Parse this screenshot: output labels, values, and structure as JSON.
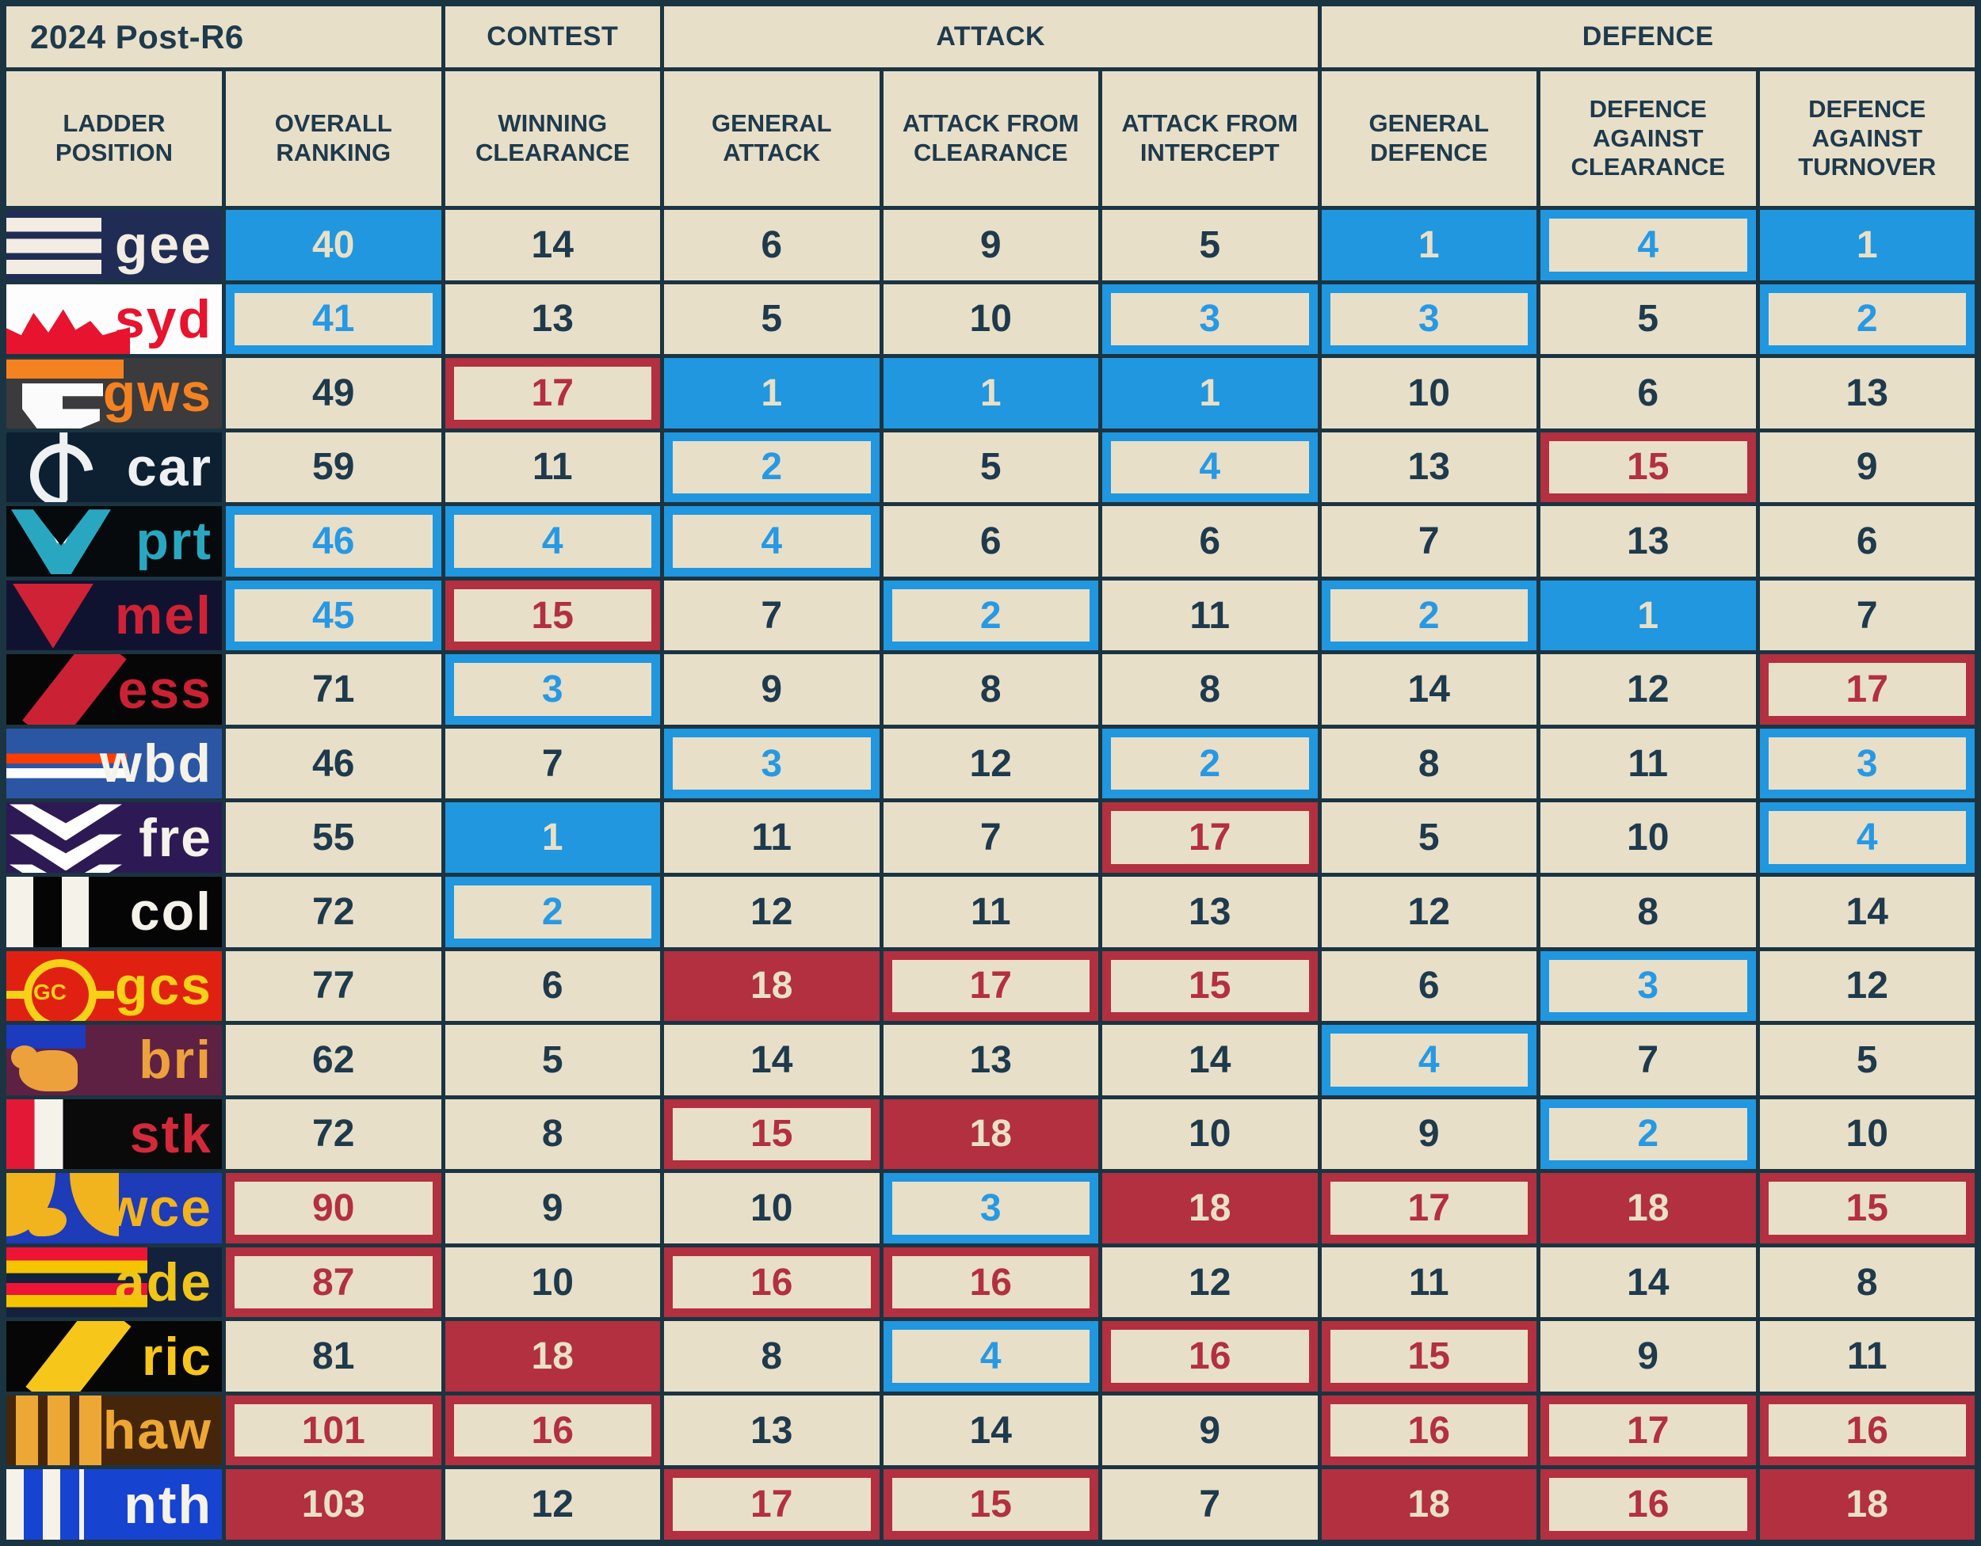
{
  "chart_data": {
    "type": "table",
    "title": "2024 Post-R6",
    "group_headers": [
      {
        "label": "CONTEST",
        "span": 1
      },
      {
        "label": "ATTACK",
        "span": 3
      },
      {
        "label": "DEFENCE",
        "span": 3
      }
    ],
    "columns": [
      "LADDER POSITION",
      "OVERALL RANKING",
      "WINNING CLEARANCE",
      "GENERAL ATTACK",
      "ATTACK FROM CLEARANCE",
      "ATTACK FROM INTERCEPT",
      "GENERAL DEFENCE",
      "DEFENCE AGAINST CLEARANCE",
      "DEFENCE AGAINST TURNOVER"
    ],
    "style_meaning": {
      "bf": "blue filled cell (best, rank 1)",
      "bb": "blue outlined cell (very good)",
      "rb": "red outlined cell (very poor)",
      "rf": "red filled cell (worst, rank 18)",
      "p": "plain cell"
    },
    "rows": [
      {
        "team": "gee",
        "values": [
          40,
          14,
          6,
          9,
          5,
          1,
          4,
          1
        ],
        "styles": [
          "bf",
          "p",
          "p",
          "p",
          "p",
          "bf",
          "bb",
          "bf"
        ]
      },
      {
        "team": "syd",
        "values": [
          41,
          13,
          5,
          10,
          3,
          3,
          5,
          2
        ],
        "styles": [
          "bb",
          "p",
          "p",
          "p",
          "bb",
          "bb",
          "p",
          "bb"
        ]
      },
      {
        "team": "gws",
        "values": [
          49,
          17,
          1,
          1,
          1,
          10,
          6,
          13
        ],
        "styles": [
          "p",
          "rb",
          "bf",
          "bf",
          "bf",
          "p",
          "p",
          "p"
        ]
      },
      {
        "team": "car",
        "values": [
          59,
          11,
          2,
          5,
          4,
          13,
          15,
          9
        ],
        "styles": [
          "p",
          "p",
          "bb",
          "p",
          "bb",
          "p",
          "rb",
          "p"
        ]
      },
      {
        "team": "prt",
        "values": [
          46,
          4,
          4,
          6,
          6,
          7,
          13,
          6
        ],
        "styles": [
          "bb",
          "bb",
          "bb",
          "p",
          "p",
          "p",
          "p",
          "p"
        ]
      },
      {
        "team": "mel",
        "values": [
          45,
          15,
          7,
          2,
          11,
          2,
          1,
          7
        ],
        "styles": [
          "bb",
          "rb",
          "p",
          "bb",
          "p",
          "bb",
          "bf",
          "p"
        ]
      },
      {
        "team": "ess",
        "values": [
          71,
          3,
          9,
          8,
          8,
          14,
          12,
          17
        ],
        "styles": [
          "p",
          "bb",
          "p",
          "p",
          "p",
          "p",
          "p",
          "rb"
        ]
      },
      {
        "team": "wbd",
        "values": [
          46,
          7,
          3,
          12,
          2,
          8,
          11,
          3
        ],
        "styles": [
          "p",
          "p",
          "bb",
          "p",
          "bb",
          "p",
          "p",
          "bb"
        ]
      },
      {
        "team": "fre",
        "values": [
          55,
          1,
          11,
          7,
          17,
          5,
          10,
          4
        ],
        "styles": [
          "p",
          "bf",
          "p",
          "p",
          "rb",
          "p",
          "p",
          "bb"
        ]
      },
      {
        "team": "col",
        "values": [
          72,
          2,
          12,
          11,
          13,
          12,
          8,
          14
        ],
        "styles": [
          "p",
          "bb",
          "p",
          "p",
          "p",
          "p",
          "p",
          "p"
        ]
      },
      {
        "team": "gcs",
        "values": [
          77,
          6,
          18,
          17,
          15,
          6,
          3,
          12
        ],
        "styles": [
          "p",
          "p",
          "rf",
          "rb",
          "rb",
          "p",
          "bb",
          "p"
        ]
      },
      {
        "team": "bri",
        "values": [
          62,
          5,
          14,
          13,
          14,
          4,
          7,
          5
        ],
        "styles": [
          "p",
          "p",
          "p",
          "p",
          "p",
          "bb",
          "p",
          "p"
        ]
      },
      {
        "team": "stk",
        "values": [
          72,
          8,
          15,
          18,
          10,
          9,
          2,
          10
        ],
        "styles": [
          "p",
          "p",
          "rb",
          "rf",
          "p",
          "p",
          "bb",
          "p"
        ]
      },
      {
        "team": "wce",
        "values": [
          90,
          9,
          10,
          3,
          18,
          17,
          18,
          15
        ],
        "styles": [
          "rb",
          "p",
          "p",
          "bb",
          "rf",
          "rb",
          "rf",
          "rb"
        ]
      },
      {
        "team": "ade",
        "values": [
          87,
          10,
          16,
          16,
          12,
          11,
          14,
          8
        ],
        "styles": [
          "rb",
          "p",
          "rb",
          "rb",
          "p",
          "p",
          "p",
          "p"
        ]
      },
      {
        "team": "ric",
        "values": [
          81,
          18,
          8,
          4,
          16,
          15,
          9,
          11
        ],
        "styles": [
          "p",
          "rf",
          "p",
          "bb",
          "rb",
          "rb",
          "p",
          "p"
        ]
      },
      {
        "team": "haw",
        "values": [
          101,
          16,
          13,
          14,
          9,
          16,
          17,
          16
        ],
        "styles": [
          "rb",
          "rb",
          "p",
          "p",
          "p",
          "rb",
          "rb",
          "rb"
        ]
      },
      {
        "team": "nth",
        "values": [
          103,
          12,
          17,
          15,
          7,
          18,
          16,
          18
        ],
        "styles": [
          "rf",
          "p",
          "rb",
          "rb",
          "p",
          "rf",
          "rb",
          "rf"
        ]
      }
    ]
  },
  "team_colors": {
    "gee": {
      "bg": "#202c54",
      "text": "#f2ece2"
    },
    "syd": {
      "bg": "#fdfdfd",
      "text": "#e8132e"
    },
    "gws": {
      "bg": "#3b3a3c",
      "text": "#f58220"
    },
    "car": {
      "bg": "#0c2031",
      "text": "#eef0f2"
    },
    "prt": {
      "bg": "#070a0c",
      "text": "#2aa7c0"
    },
    "mel": {
      "bg": "#10132f",
      "text": "#cf2236"
    },
    "ess": {
      "bg": "#070606",
      "text": "#cb2134"
    },
    "wbd": {
      "bg": "#2b56a4",
      "text": "#f5f2ea"
    },
    "fre": {
      "bg": "#2d1a54",
      "text": "#f5f2ea"
    },
    "col": {
      "bg": "#050505",
      "text": "#f5f2ea"
    },
    "gcs": {
      "bg": "#e02112",
      "text": "#f7d117"
    },
    "bri": {
      "bg": "#5e2144",
      "text": "#eda13c"
    },
    "stk": {
      "bg": "#0a0a0a",
      "text": "#d4293b"
    },
    "wce": {
      "bg": "#1e3bb8",
      "text": "#f1b31e"
    },
    "ade": {
      "bg": "#13213d",
      "text": "#f0c418"
    },
    "ric": {
      "bg": "#060606",
      "text": "#f7c61b"
    },
    "haw": {
      "bg": "#46260b",
      "text": "#eda735"
    },
    "nth": {
      "bg": "#1643cf",
      "text": "#f5f2ea"
    }
  },
  "logo_text": {
    "gcs": "GC"
  },
  "colors": {
    "good_blue": "#2097de",
    "bad_red": "#b23040",
    "cell_cream": "#e8dfc9",
    "ink_navy": "#1e3a4c",
    "grid_line": "#1b3442"
  }
}
